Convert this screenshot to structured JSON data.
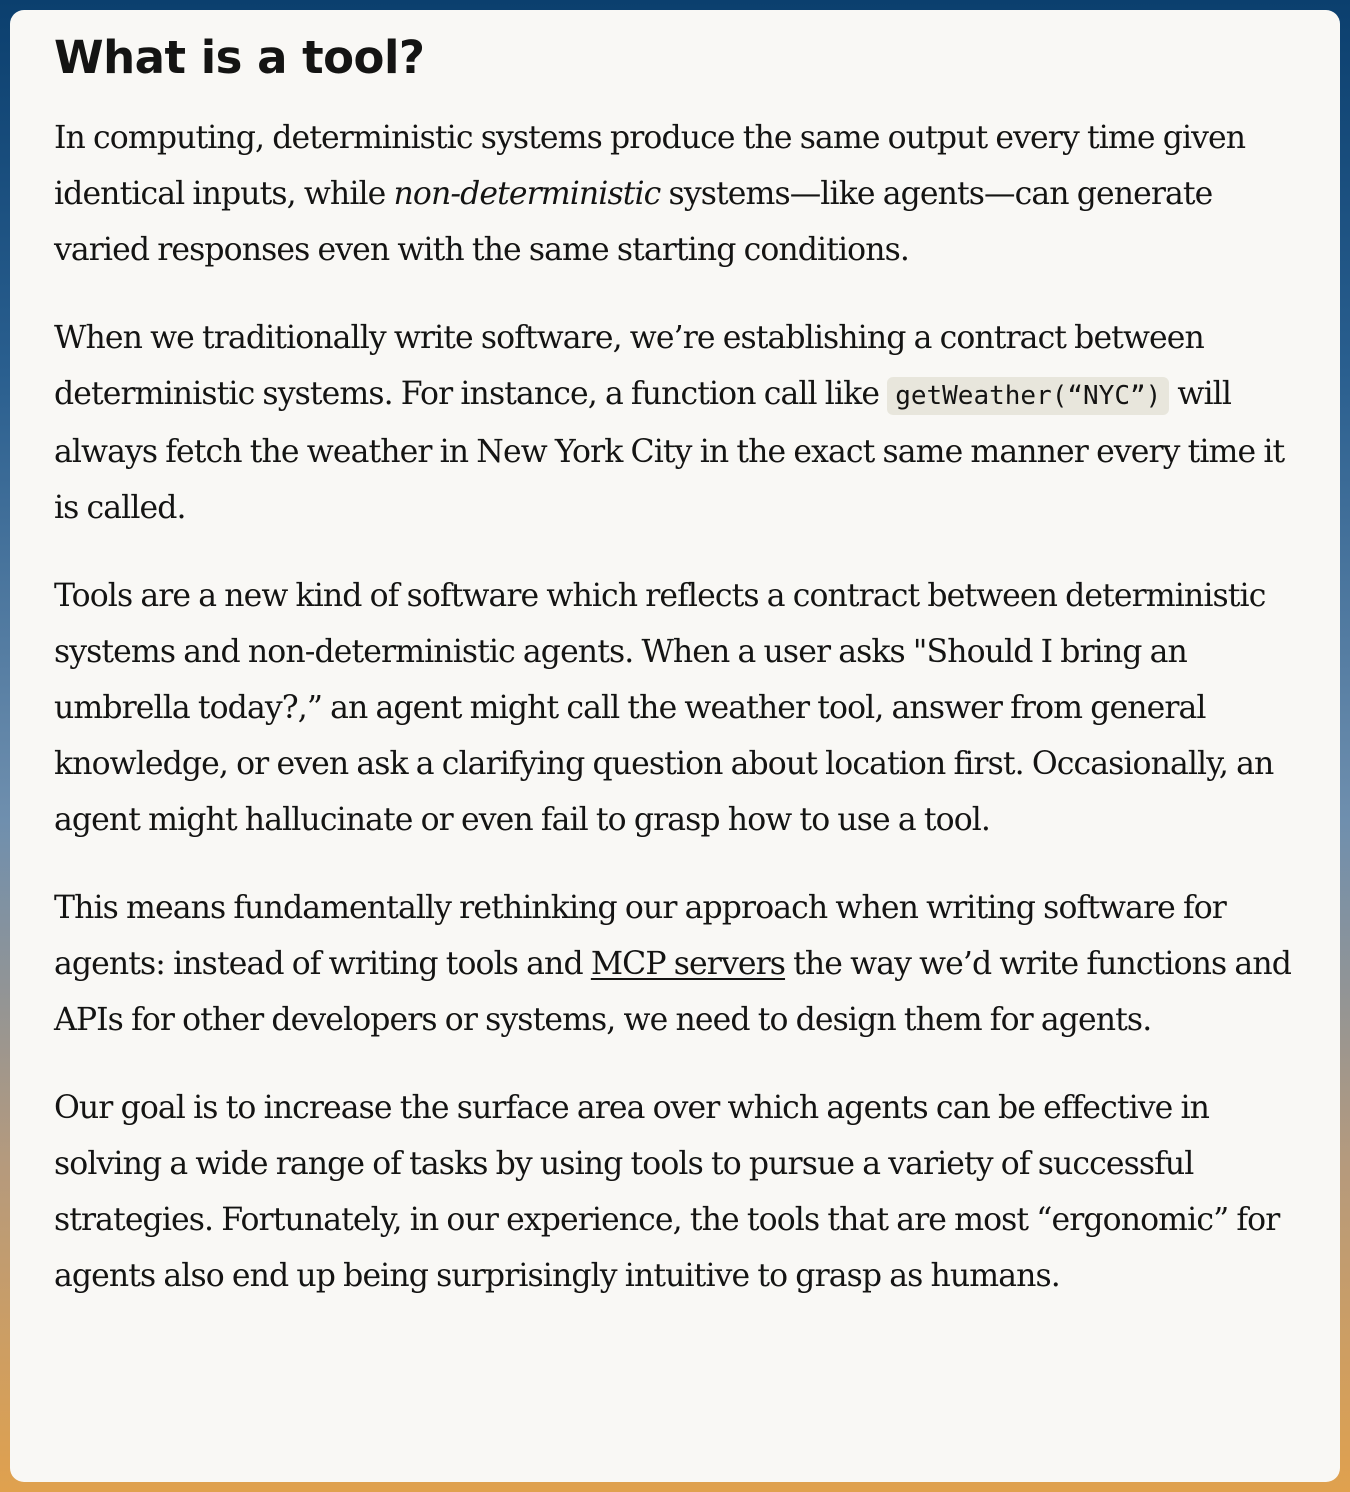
{
  "article": {
    "heading": "What is a tool?",
    "p1": {
      "before": "In computing, deterministic systems produce the same output every time given identical inputs, while ",
      "italic": "non-deterministic",
      "after": " systems—like agents—can generate varied responses even with the same starting conditions."
    },
    "p2": {
      "before": "When we traditionally write software, we’re establishing a contract between deterministic systems. For instance, a function call like ",
      "code": "getWeather(“NYC”)",
      "after": " will always fetch the weather in New York City in the exact same manner every time it is called."
    },
    "p3": "Tools are a new kind of software which reflects a contract between deterministic systems and non-deterministic agents. When a user asks \"Should I bring an umbrella today?,” an agent might call the weather tool, answer from general knowledge, or even ask a clarifying question about location first. Occasionally, an agent might hallucinate or even fail to grasp how to use a tool.",
    "p4": {
      "before": "This means fundamentally rethinking our approach when writing software for agents: instead of writing tools and ",
      "link": "MCP servers",
      "after": " the way we’d write functions and APIs for other developers or systems, we need to design them for agents."
    },
    "p5": "Our goal is to increase the surface area over which agents can be effective in solving a wide range of tasks by using tools to pursue a variety of successful strategies. Fortunately, in our experience, the tools that are most “ergonomic” for agents also end up being surprisingly intuitive to grasp as humans."
  }
}
